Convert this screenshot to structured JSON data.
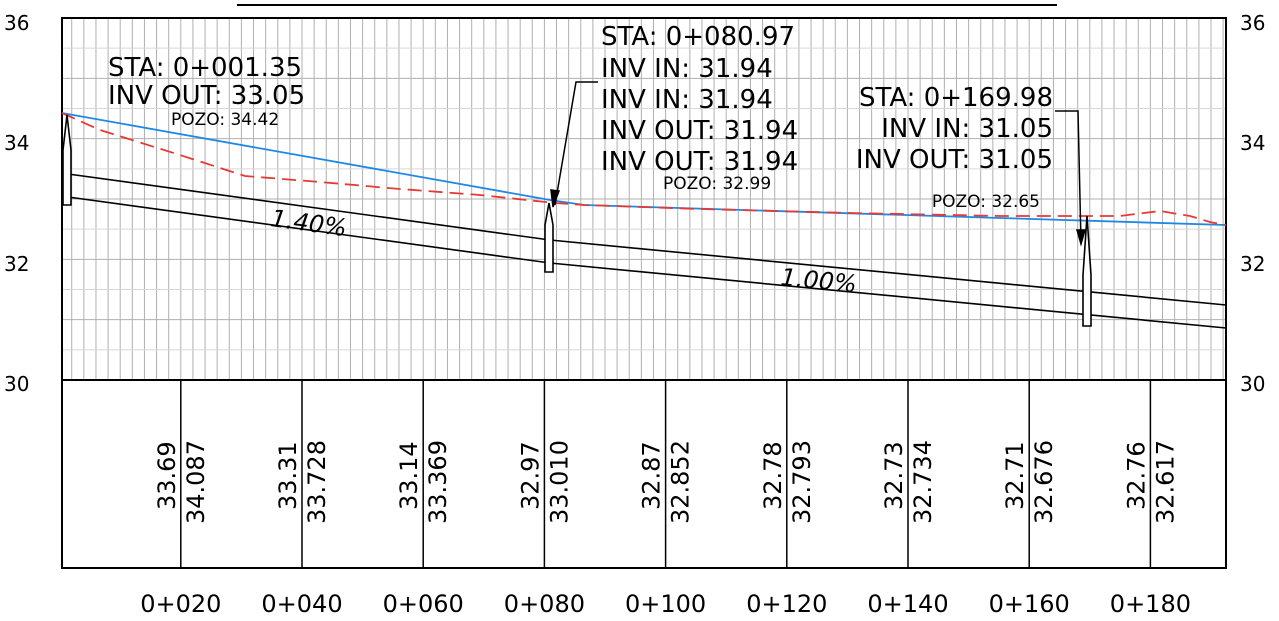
{
  "profile": {
    "title": "",
    "y_axis": {
      "left_labels": [
        "36",
        "34",
        "32",
        "30"
      ],
      "right_labels": [
        "36",
        "34",
        "32",
        "30"
      ],
      "range": [
        30,
        36
      ]
    },
    "stations": [
      "0+020",
      "0+040",
      "0+060",
      "0+080",
      "0+100",
      "0+120",
      "0+140",
      "0+160",
      "0+180"
    ],
    "band_values": [
      {
        "existing": "33.69",
        "design": "34.087"
      },
      {
        "existing": "33.31",
        "design": "33.728"
      },
      {
        "existing": "33.14",
        "design": "33.369"
      },
      {
        "existing": "32.97",
        "design": "33.010"
      },
      {
        "existing": "32.87",
        "design": "32.852"
      },
      {
        "existing": "32.78",
        "design": "32.793"
      },
      {
        "existing": "32.73",
        "design": "32.734"
      },
      {
        "existing": "32.71",
        "design": "32.676"
      },
      {
        "existing": "32.76",
        "design": "32.617"
      }
    ],
    "slopes": [
      "1.40%",
      "1.00%"
    ],
    "manholes": [
      {
        "lines": [
          "STA: 0+001.35",
          "INV  OUT: 33.05"
        ],
        "pozo": "POZO: 34.42"
      },
      {
        "lines": [
          "STA: 0+080.97",
          "INV  IN: 31.94",
          "INV  IN: 31.94",
          "INV  OUT: 31.94",
          "INV  OUT: 31.94"
        ],
        "pozo": "POZO: 32.99"
      },
      {
        "lines": [
          "STA: 0+169.98",
          "INV  IN: 31.05",
          "INV  OUT: 31.05"
        ],
        "pozo": "POZO: 32.65"
      }
    ],
    "colors": {
      "ground_line": "#1e88e5",
      "existing_line": "#e53935",
      "grid": "#b0b0b0",
      "ink": "#000000"
    }
  }
}
